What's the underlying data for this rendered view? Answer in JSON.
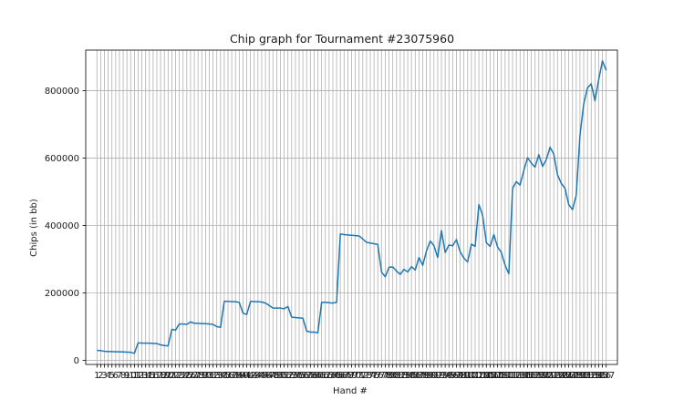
{
  "chart_data": {
    "type": "line",
    "title": "Chip graph for Tournament #23075960",
    "xlabel": "Hand #",
    "ylabel": "Chips (in bb)",
    "ylim": [
      -12000,
      920000
    ],
    "yticks": [
      0,
      200000,
      400000,
      600000,
      800000
    ],
    "ytick_labels": [
      "0",
      "200000",
      "400000",
      "600000",
      "800000"
    ],
    "grid": true,
    "line_color": "#1f77b4",
    "x": [
      1,
      2,
      3,
      4,
      5,
      6,
      7,
      8,
      9,
      10,
      11,
      12,
      13,
      14,
      15,
      16,
      17,
      18,
      19,
      20,
      21,
      22,
      23,
      24,
      25,
      26,
      27,
      28,
      29,
      30,
      31,
      32,
      33,
      34,
      35,
      36,
      37,
      38,
      39,
      40,
      41,
      42,
      43,
      44,
      45,
      46,
      47,
      48,
      49,
      50,
      51,
      52,
      53,
      54,
      55,
      56,
      57,
      58,
      59,
      60,
      61,
      62,
      63,
      64,
      65,
      66,
      67,
      68,
      69,
      70,
      71,
      72,
      73,
      74,
      75,
      76,
      77,
      78,
      79,
      80,
      81,
      82,
      83,
      84,
      85,
      86,
      87,
      88,
      89,
      90,
      91,
      92,
      93,
      94,
      95,
      96,
      97,
      98,
      99,
      100,
      101,
      102,
      103,
      104,
      105,
      106,
      107,
      108,
      109,
      110,
      111,
      112,
      113,
      114,
      115,
      116,
      117,
      118,
      119,
      120,
      121,
      122,
      123,
      124,
      125,
      126,
      127,
      128,
      129,
      130,
      131,
      132,
      133,
      134,
      135,
      136,
      137
    ],
    "values": [
      30000,
      29000,
      27000,
      26000,
      26000,
      25500,
      25500,
      25000,
      24500,
      24000,
      21000,
      52000,
      51000,
      51000,
      51000,
      50000,
      50000,
      46000,
      44000,
      43000,
      92000,
      90000,
      108000,
      108000,
      107000,
      114000,
      110000,
      110000,
      109000,
      109000,
      108000,
      107000,
      100000,
      98000,
      175000,
      175000,
      174000,
      174000,
      172000,
      140000,
      136000,
      175000,
      174000,
      174000,
      173000,
      170000,
      163000,
      155000,
      155000,
      155000,
      153000,
      160000,
      128000,
      127000,
      126000,
      125000,
      87000,
      84000,
      84000,
      82000,
      172000,
      172000,
      171000,
      170000,
      172000,
      375000,
      373000,
      372000,
      371000,
      370000,
      369000,
      360000,
      350000,
      348000,
      346000,
      344000,
      262000,
      248000,
      276000,
      277000,
      265000,
      255000,
      270000,
      262000,
      278000,
      268000,
      305000,
      282000,
      324000,
      354000,
      340000,
      305000,
      385000,
      320000,
      342000,
      340000,
      358000,
      322000,
      303000,
      292000,
      345000,
      338000,
      462000,
      430000,
      349000,
      338000,
      373000,
      336000,
      320000,
      282000,
      257000,
      510000,
      530000,
      520000,
      563000,
      601000,
      585000,
      573000,
      610000,
      575000,
      595000,
      632000,
      612000,
      550000,
      525000,
      510000,
      462000,
      447000,
      490000,
      668000,
      760000,
      808000,
      820000,
      770000,
      833000,
      888000,
      860000
    ]
  }
}
